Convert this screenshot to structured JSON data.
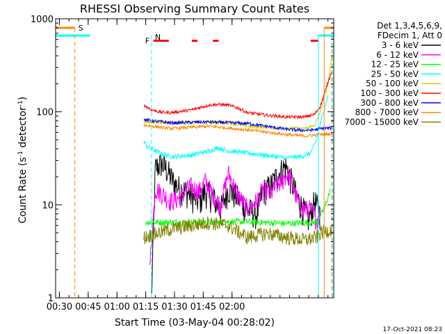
{
  "chart_data": {
    "type": "line",
    "title": "RHESSI Observing Summary Count Rates",
    "xlabel": "Start Time (03-May-04 00:28:02)",
    "ylabel_parts": [
      "Count Rate (s",
      "-1",
      " detector",
      "-1",
      ")"
    ],
    "y_scale": "log",
    "ylim": [
      1,
      1000
    ],
    "y_ticks": [
      "1",
      "10",
      "100",
      "1000"
    ],
    "x_start": "00:28:02",
    "x_range_min": [
      0,
      145
    ],
    "x_ticks": [
      {
        "label": "00:30",
        "t": 1.97
      },
      {
        "label": "00:45",
        "t": 16.97
      },
      {
        "label": "01:00",
        "t": 31.97
      },
      {
        "label": "01:15",
        "t": 46.97
      },
      {
        "label": "01:30",
        "t": 61.97
      },
      {
        "label": "01:45",
        "t": 76.97
      },
      {
        "label": "02:00",
        "t": 91.97
      }
    ],
    "legend_header": [
      "Det 1,3,4,5,6,9,",
      "FDecim 1, Att 0"
    ],
    "legend_position": "top-right outside",
    "annotations": [
      "S",
      "N",
      "F"
    ],
    "footer_timestamp": "17-Oct-2021 08:23",
    "series": [
      {
        "name": "3 - 6 keV",
        "color": "#000000",
        "x": [
          50,
          52,
          55,
          58,
          60,
          62,
          65,
          68,
          72,
          75,
          78,
          82,
          86,
          90,
          95,
          100,
          105,
          108,
          112,
          115,
          118,
          120,
          123,
          126,
          129,
          132,
          135,
          138
        ],
        "y": [
          1,
          25,
          28,
          24,
          20,
          17,
          15,
          14,
          12,
          11,
          14,
          12,
          9,
          15,
          12,
          9,
          8,
          14,
          16,
          20,
          24,
          26,
          18,
          12,
          9,
          7,
          11,
          8
        ]
      },
      {
        "name": "6 - 12 keV",
        "color": "#ff00ff",
        "x": [
          49,
          52,
          56,
          60,
          65,
          70,
          75,
          78,
          82,
          86,
          90,
          95,
          100,
          105,
          108,
          112,
          115,
          118,
          121,
          124,
          127,
          130,
          133,
          136,
          138
        ],
        "y": [
          2,
          15,
          13,
          11,
          12,
          16,
          14,
          18,
          13,
          10,
          22,
          13,
          9,
          11,
          15,
          13,
          16,
          18,
          22,
          15,
          10,
          9,
          9,
          7,
          8
        ]
      },
      {
        "name": "12 - 25 keV",
        "color": "#00ff00",
        "x": [
          47,
          60,
          80,
          100,
          120,
          136,
          140,
          143
        ],
        "y": [
          6.5,
          6.5,
          6.5,
          6.6,
          6.3,
          6.5,
          9,
          14
        ]
      },
      {
        "name": "25 - 50 keV",
        "color": "#00ffff",
        "x": [
          46,
          48,
          52,
          56,
          60,
          70,
          80,
          85,
          90,
          100,
          110,
          120,
          128,
          133,
          136,
          139,
          142
        ],
        "y": [
          48,
          42,
          38,
          35,
          33,
          34,
          38,
          41,
          38,
          36,
          34,
          32,
          33,
          36,
          50,
          90,
          150
        ]
      },
      {
        "name": "50 - 100 keV",
        "color": "#cccc00",
        "x": [
          46,
          60,
          80,
          90,
          100,
          110,
          120,
          130,
          135,
          138,
          142,
          144
        ],
        "y": [
          78,
          76,
          77,
          76,
          70,
          68,
          67,
          66,
          72,
          100,
          200,
          390
        ]
      },
      {
        "name": "100 - 300 keV",
        "color": "#ff0000",
        "x": [
          46,
          50,
          55,
          60,
          70,
          80,
          85,
          90,
          95,
          100,
          110,
          120,
          130,
          135,
          138,
          141,
          144
        ],
        "y": [
          118,
          105,
          99,
          98,
          104,
          118,
          120,
          118,
          110,
          98,
          92,
          88,
          88,
          94,
          115,
          180,
          280
        ]
      },
      {
        "name": "300 - 800 keV",
        "color": "#0000ff",
        "x": [
          46,
          60,
          80,
          100,
          120,
          130,
          135,
          138,
          144
        ],
        "y": [
          82,
          76,
          78,
          75,
          65,
          63,
          64,
          66,
          67
        ]
      },
      {
        "name": "800 - 7000 keV",
        "color": "#ff8800",
        "x": [
          46,
          60,
          80,
          100,
          120,
          130,
          135,
          138,
          144
        ],
        "y": [
          72,
          66,
          70,
          64,
          57,
          55,
          56,
          57,
          58
        ]
      },
      {
        "name": "7000 - 15000 keV",
        "color": "#808000",
        "x": [
          46,
          60,
          80,
          90,
          100,
          110,
          120,
          130,
          136,
          138,
          144
        ],
        "y": [
          4.5,
          5.5,
          6.5,
          6,
          4.5,
          5,
          4.5,
          4.2,
          4.5,
          5,
          5.5
        ]
      }
    ],
    "flags": {
      "saa_s_level": 800,
      "night_n_level": 660,
      "flare_f_level": 580,
      "s_dashed_x": 10,
      "n_dashed_x": 50,
      "end_solid_x": [
        137,
        140
      ],
      "end_dashed_x": 144,
      "s_segments": [
        [
          0,
          10
        ],
        [
          140,
          145
        ]
      ],
      "n_segments": [
        [
          0,
          18
        ],
        [
          137,
          145
        ]
      ],
      "f_segments": [
        [
          51,
          59
        ],
        [
          71,
          74
        ],
        [
          82,
          85
        ],
        [
          133,
          137
        ]
      ]
    }
  }
}
